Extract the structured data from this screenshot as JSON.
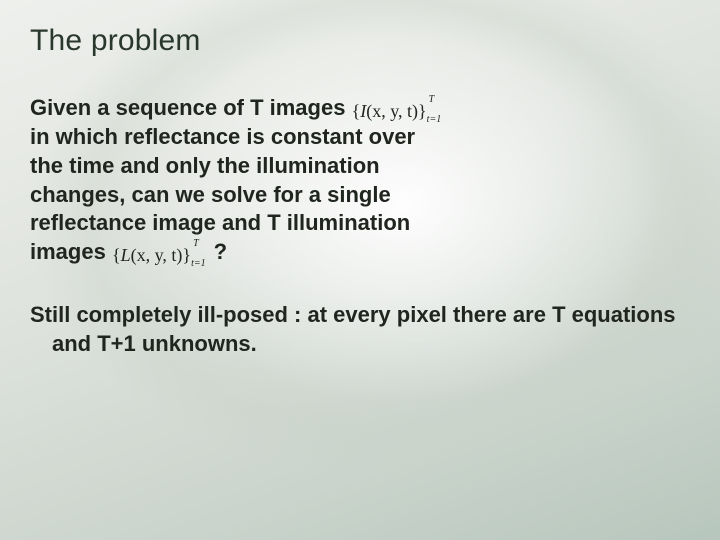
{
  "slide": {
    "title": "The problem",
    "title_color": "#29372d",
    "title_fontsize": 30,
    "body_color": "#20261f",
    "body_fontsize": 22,
    "background": {
      "gradient_colors": [
        "#eef0ed",
        "#e6e9e4",
        "#dfe3de",
        "#d4dbd4",
        "#cad4cc",
        "#bfccc3",
        "#b7c6bd"
      ],
      "glow_center": [
        0.56,
        0.38
      ],
      "glow_color": "#ffffff"
    },
    "paragraph1": {
      "l1a": "Given a sequence of T images ",
      "formula1": {
        "prefix_brace": "{",
        "fn": "I",
        "args": "(x, y, t)",
        "suffix_brace": "}",
        "sup": "T",
        "sub": "t=1"
      },
      "l2": "in which reflectance is constant over",
      "l3": "the time and only the illumination",
      "l4": "changes, can we solve for a single",
      "l5": "reflectance image and T illumination",
      "l6a": "images ",
      "formula2": {
        "prefix_brace": "{",
        "fn": "L",
        "args": "(x, y, t)",
        "suffix_brace": "}",
        "sup": "T",
        "sub": "t=1"
      },
      "l6b": " ?"
    },
    "paragraph2": {
      "text": "Still completely ill-posed : at every pixel there are T equations and T+1 unknowns."
    }
  }
}
